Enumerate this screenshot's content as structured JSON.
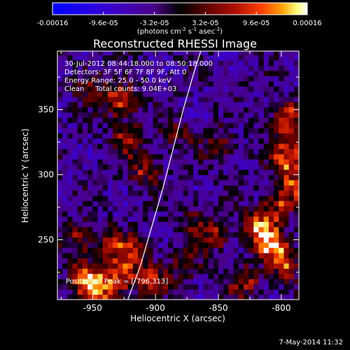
{
  "colorbar": {
    "tick_labels": [
      "-0.00016",
      "-9.6e-05",
      "-3.2e-05",
      "3.2e-05",
      "9.6e-05",
      "0.00016"
    ],
    "tick_values": [
      -0.00016,
      -9.6e-05,
      -3.2e-05,
      3.2e-05,
      9.6e-05,
      0.00016
    ],
    "range": [
      -0.00016,
      0.00016
    ],
    "unit_main": "(photons cm",
    "unit_exp1": "-2",
    "unit_mid1": " s",
    "unit_exp2": "-1",
    "unit_mid2": " asec",
    "unit_exp3": "-2",
    "unit_end": ")",
    "colors": [
      "#0000ff",
      "#3a00d0",
      "#4a0088",
      "#000000",
      "#6a0000",
      "#b01000",
      "#ff4000",
      "#ffa000",
      "#ffff80",
      "#ffffff"
    ]
  },
  "chart_data": {
    "type": "heatmap",
    "title": "Reconstructed RHESSI Image",
    "xlabel": "Heliocentric X (arcsec)",
    "ylabel": "Heliocentric Y (arcsec)",
    "xlim": [
      -978,
      -786
    ],
    "ylim": [
      204,
      395
    ],
    "x_ticks": [
      -950,
      -900,
      -850,
      -800
    ],
    "y_ticks": [
      250,
      300,
      350
    ],
    "x_tick_labels": [
      "-950",
      "-900",
      "-850",
      "-800"
    ],
    "y_tick_labels": [
      "250",
      "300",
      "350"
    ],
    "annotations": [
      "30-Jul-2012 08:44:18.000 to 08:50:18.000",
      "Detectors: 3F 5F 6F 7F 8F 9F, Att 0",
      "Energy Range: 25.0 - 50.0 keV",
      "Clean     Total counts: 9.04E+03"
    ],
    "peak_label": "Position of Peak = [-796,313]",
    "peak": [
      -796,
      313
    ],
    "limb_curve": [
      [
        -922,
        204
      ],
      [
        -912,
        230
      ],
      [
        -903,
        260
      ],
      [
        -894,
        290
      ],
      [
        -886,
        320
      ],
      [
        -878,
        350
      ],
      [
        -869,
        380
      ],
      [
        -864,
        395
      ]
    ],
    "sources": [
      {
        "x": -945,
        "y": 212,
        "value": 0.00015
      },
      {
        "x": -960,
        "y": 220,
        "value": 0.00011
      },
      {
        "x": -928,
        "y": 222,
        "value": 0.00012
      },
      {
        "x": -905,
        "y": 215,
        "value": 9e-05
      },
      {
        "x": -935,
        "y": 245,
        "value": 8.5e-05
      },
      {
        "x": -962,
        "y": 250,
        "value": 8e-05
      },
      {
        "x": -915,
        "y": 240,
        "value": 7e-05
      },
      {
        "x": -930,
        "y": 355,
        "value": 0.00013
      },
      {
        "x": -925,
        "y": 325,
        "value": 8e-05
      },
      {
        "x": -910,
        "y": 302,
        "value": 9e-05
      },
      {
        "x": -955,
        "y": 370,
        "value": 6e-05
      },
      {
        "x": -885,
        "y": 330,
        "value": 6e-05
      },
      {
        "x": -850,
        "y": 320,
        "value": 8e-05
      },
      {
        "x": -855,
        "y": 250,
        "value": 9e-05
      },
      {
        "x": -870,
        "y": 265,
        "value": 6e-05
      },
      {
        "x": -820,
        "y": 258,
        "value": 0.00015
      },
      {
        "x": -810,
        "y": 245,
        "value": 0.00013
      },
      {
        "x": -800,
        "y": 230,
        "value": 0.00012
      },
      {
        "x": -830,
        "y": 215,
        "value": 8e-05
      },
      {
        "x": -796,
        "y": 313,
        "value": 0.00016
      },
      {
        "x": -798,
        "y": 340,
        "value": 0.00013
      },
      {
        "x": -792,
        "y": 290,
        "value": 0.00012
      },
      {
        "x": -805,
        "y": 275,
        "value": 9e-05
      },
      {
        "x": -880,
        "y": 228,
        "value": 7e-05
      }
    ]
  },
  "footer": {
    "date": "7-May-2014 11:32"
  }
}
